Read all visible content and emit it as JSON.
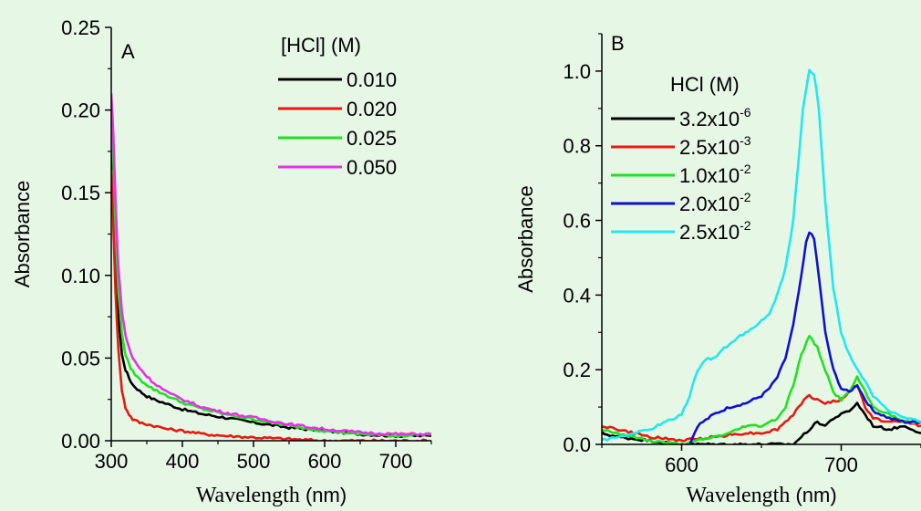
{
  "chart_data": [
    {
      "panel_label": "A",
      "type": "line",
      "xlabel_main": "Wavelength",
      "xlabel_unit": " (nm)",
      "ylabel": "Absorbance",
      "xlim": [
        300,
        750
      ],
      "ylim": [
        0,
        0.25
      ],
      "xticks": [
        "300",
        "400",
        "500",
        "600",
        "700"
      ],
      "yticks": [
        "0.00",
        "0.05",
        "0.10",
        "0.15",
        "0.20",
        "0.25"
      ],
      "legend": {
        "title": "[HCl] (M)",
        "placement": "top-right"
      },
      "series": [
        {
          "name": "0.010",
          "color": "#000000",
          "x": [
            300,
            303,
            306,
            310,
            315,
            320,
            325,
            330,
            340,
            350,
            360,
            380,
            400,
            430,
            460,
            500,
            550,
            600,
            650,
            700,
            750
          ],
          "y": [
            0.18,
            0.15,
            0.11,
            0.075,
            0.052,
            0.043,
            0.038,
            0.034,
            0.03,
            0.027,
            0.025,
            0.022,
            0.019,
            0.016,
            0.014,
            0.011,
            0.008,
            0.006,
            0.004,
            0.003,
            0.003
          ]
        },
        {
          "name": "0.020",
          "color": "#e8190f",
          "x": [
            300,
            303,
            306,
            310,
            315,
            320,
            325,
            330,
            340,
            350,
            360,
            380,
            400,
            430,
            460,
            500,
            550,
            600,
            650,
            700,
            750
          ],
          "y": [
            0.165,
            0.13,
            0.09,
            0.055,
            0.03,
            0.02,
            0.016,
            0.013,
            0.011,
            0.01,
            0.009,
            0.007,
            0.006,
            0.004,
            0.003,
            0.002,
            0.001,
            0.0,
            0.0,
            0.0,
            0.0
          ]
        },
        {
          "name": "0.025",
          "color": "#22e022",
          "x": [
            300,
            303,
            306,
            310,
            315,
            320,
            325,
            330,
            340,
            350,
            360,
            380,
            400,
            430,
            460,
            500,
            550,
            600,
            650,
            700,
            750
          ],
          "y": [
            0.2,
            0.17,
            0.13,
            0.09,
            0.065,
            0.052,
            0.046,
            0.042,
            0.037,
            0.034,
            0.031,
            0.027,
            0.023,
            0.019,
            0.016,
            0.013,
            0.009,
            0.006,
            0.004,
            0.003,
            0.004
          ]
        },
        {
          "name": "0.050",
          "color": "#e830e8",
          "x": [
            300,
            303,
            306,
            310,
            315,
            320,
            325,
            330,
            340,
            350,
            360,
            380,
            400,
            430,
            460,
            500,
            550,
            600,
            650,
            700,
            750
          ],
          "y": [
            0.21,
            0.185,
            0.145,
            0.105,
            0.078,
            0.064,
            0.056,
            0.05,
            0.044,
            0.039,
            0.035,
            0.029,
            0.025,
            0.02,
            0.017,
            0.014,
            0.01,
            0.007,
            0.005,
            0.004,
            0.004
          ]
        }
      ]
    },
    {
      "panel_label": "B",
      "type": "line",
      "xlabel_main": "Wavelength",
      "xlabel_unit": " (nm)",
      "ylabel": "Absorbance",
      "xlim": [
        550,
        750
      ],
      "ylim": [
        0,
        1.1
      ],
      "xticks": [
        "600",
        "700"
      ],
      "yticks": [
        "0.0",
        "0.2",
        "0.4",
        "0.6",
        "0.8",
        "1.0"
      ],
      "legend": {
        "title": "HCl (M)",
        "placement": "top-left"
      },
      "series": [
        {
          "name": "3.2x10-6",
          "mantissa": "3.2x10",
          "exponent": "-6",
          "color": "#000000",
          "x": [
            550,
            560,
            580,
            600,
            620,
            640,
            660,
            670,
            675,
            680,
            685,
            690,
            695,
            700,
            705,
            710,
            715,
            720,
            730,
            740,
            750
          ],
          "y": [
            0.03,
            0.02,
            0.01,
            0.0,
            0.0,
            0.0,
            0.0,
            0.0,
            0.02,
            0.04,
            0.06,
            0.05,
            0.07,
            0.08,
            0.09,
            0.11,
            0.08,
            0.05,
            0.04,
            0.05,
            0.03
          ]
        },
        {
          "name": "2.5x10-3",
          "mantissa": "2.5x10",
          "exponent": "-3",
          "color": "#e8190f",
          "x": [
            550,
            560,
            580,
            600,
            620,
            640,
            650,
            660,
            670,
            675,
            680,
            685,
            690,
            700,
            705,
            710,
            715,
            720,
            730,
            740,
            750
          ],
          "y": [
            0.05,
            0.04,
            0.02,
            0.01,
            0.02,
            0.03,
            0.03,
            0.04,
            0.08,
            0.11,
            0.13,
            0.12,
            0.11,
            0.12,
            0.14,
            0.16,
            0.1,
            0.07,
            0.06,
            0.06,
            0.05
          ]
        },
        {
          "name": "1.0x10-2",
          "mantissa": "1.0x10",
          "exponent": "-2",
          "color": "#22e022",
          "x": [
            550,
            560,
            580,
            600,
            620,
            630,
            640,
            650,
            660,
            665,
            670,
            675,
            680,
            685,
            690,
            695,
            700,
            705,
            710,
            715,
            720,
            730,
            740,
            750
          ],
          "y": [
            0.04,
            0.03,
            0.01,
            0.0,
            0.02,
            0.03,
            0.05,
            0.05,
            0.07,
            0.1,
            0.16,
            0.24,
            0.29,
            0.26,
            0.2,
            0.14,
            0.12,
            0.14,
            0.18,
            0.14,
            0.1,
            0.08,
            0.06,
            0.06
          ]
        },
        {
          "name": "2.0x10-2",
          "mantissa": "2.0x10",
          "exponent": "-2",
          "color": "#1010d0",
          "x": [
            600,
            605,
            610,
            620,
            630,
            640,
            650,
            655,
            660,
            665,
            670,
            675,
            678,
            680,
            683,
            686,
            690,
            695,
            700,
            705,
            710,
            715,
            720,
            730,
            740,
            750
          ],
          "y": [
            0.0,
            0.0,
            0.05,
            0.08,
            0.1,
            0.11,
            0.13,
            0.15,
            0.18,
            0.23,
            0.32,
            0.45,
            0.54,
            0.57,
            0.55,
            0.45,
            0.3,
            0.2,
            0.15,
            0.14,
            0.16,
            0.12,
            0.09,
            0.07,
            0.06,
            0.06
          ]
        },
        {
          "name": "2.5x10-2",
          "mantissa": "2.5x10",
          "exponent": "-2",
          "color": "#20e8f0",
          "x": [
            550,
            560,
            570,
            580,
            590,
            600,
            605,
            610,
            615,
            620,
            630,
            640,
            650,
            655,
            660,
            665,
            670,
            673,
            676,
            680,
            683,
            686,
            690,
            695,
            700,
            705,
            710,
            715,
            720,
            730,
            740,
            750
          ],
          "y": [
            0.01,
            0.02,
            0.03,
            0.04,
            0.06,
            0.08,
            0.13,
            0.2,
            0.23,
            0.23,
            0.27,
            0.3,
            0.33,
            0.35,
            0.4,
            0.47,
            0.6,
            0.75,
            0.9,
            1.0,
            0.99,
            0.9,
            0.65,
            0.42,
            0.3,
            0.24,
            0.2,
            0.17,
            0.13,
            0.09,
            0.07,
            0.06
          ]
        }
      ]
    }
  ]
}
